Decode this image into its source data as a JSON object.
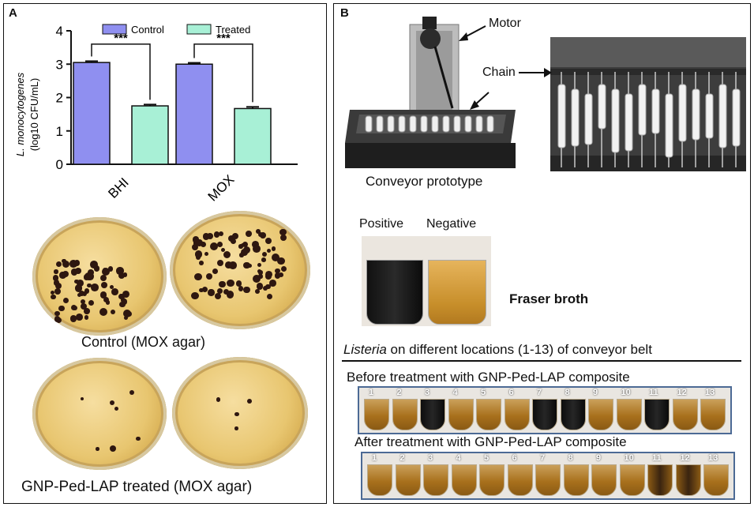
{
  "panel_a": {
    "letter": "A",
    "chart": {
      "legend": [
        "Control",
        "Treated"
      ],
      "ylabel_line1": "L. monocytogenes",
      "ylabel_line2": "(log10 CFU/mL)",
      "yticks": [
        "0",
        "1",
        "2",
        "3",
        "4"
      ],
      "sig_label": "***"
    },
    "plate_captions": {
      "control": "Control (MOX agar)",
      "treated": "GNP-Ped-LAP treated (MOX agar)"
    }
  },
  "panel_b": {
    "letter": "B",
    "labels": {
      "motor": "Motor",
      "chain": "Chain",
      "conveyor": "Conveyor prototype",
      "positive": "Positive",
      "negative": "Negative",
      "fraser": "Fraser broth",
      "listeria_title_italic": "Listeria",
      "listeria_title_rest": " on different locations (1-13) of conveyor belt",
      "before": "Before treatment with GNP-Ped-LAP composite",
      "after": "After treatment with GNP-Ped-LAP composite"
    },
    "tube_numbers": [
      "1",
      "2",
      "3",
      "4",
      "5",
      "6",
      "7",
      "8",
      "9",
      "10",
      "11",
      "12",
      "13"
    ],
    "before_positive": [
      3,
      7,
      8,
      11
    ],
    "after_partial": [
      11,
      12
    ]
  },
  "chart_data": {
    "type": "bar",
    "categories": [
      "BHI",
      "MOX"
    ],
    "series": [
      {
        "name": "Control",
        "values": [
          3.05,
          3.0
        ],
        "errors": [
          0.04,
          0.04
        ],
        "color": "#8f8ff0"
      },
      {
        "name": "Treated",
        "values": [
          1.75,
          1.67
        ],
        "errors": [
          0.04,
          0.05
        ],
        "color": "#a8f0d6"
      }
    ],
    "ylabel": "L. monocytogenes (log10 CFU/mL)",
    "ylim": [
      0,
      4
    ],
    "significance": "***",
    "legend_position": "top"
  }
}
